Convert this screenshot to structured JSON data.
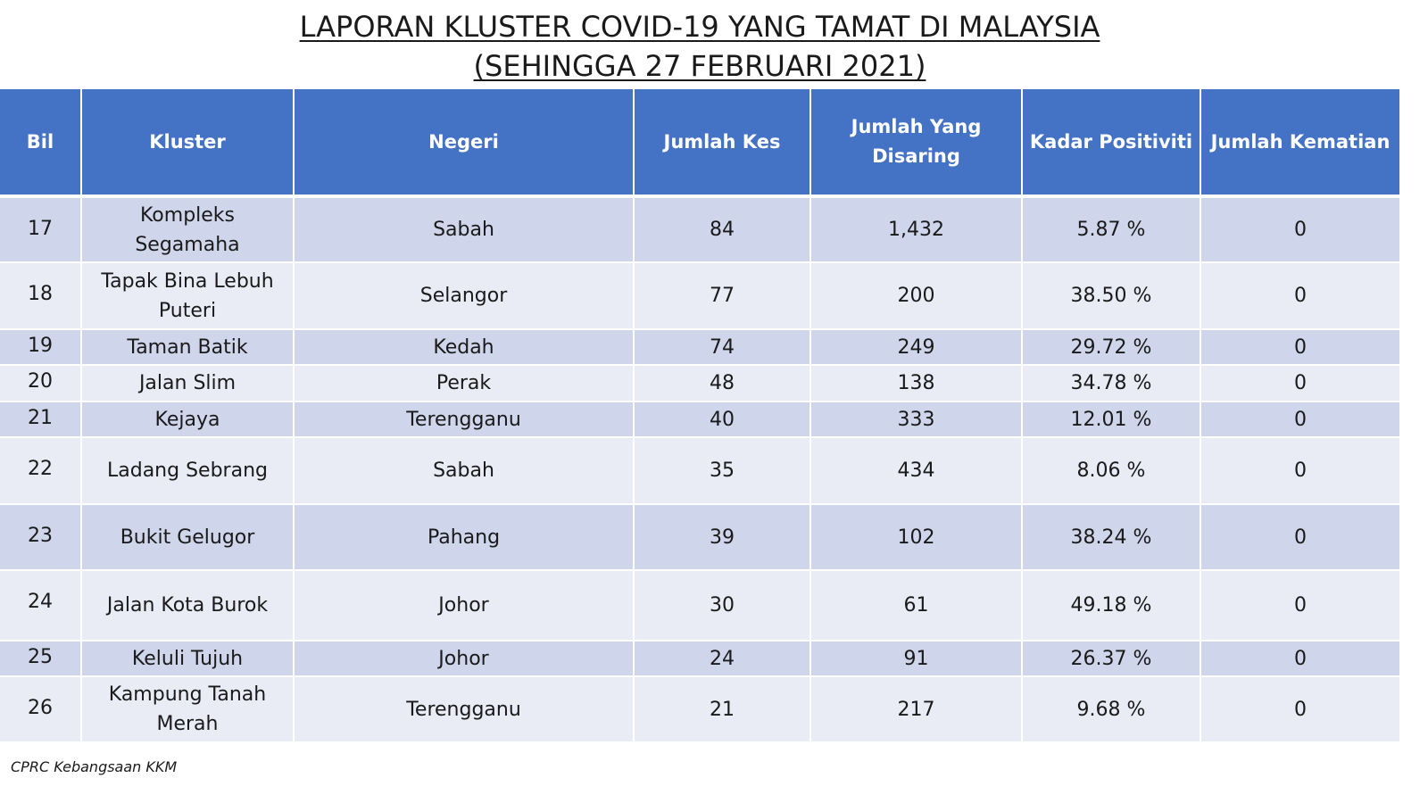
{
  "title": {
    "line1": "LAPORAN KLUSTER COVID-19 YANG TAMAT DI MALAYSIA",
    "line2": "(SEHINGGA  27 FEBRUARI 2021)"
  },
  "headers": [
    "Bil",
    "Kluster",
    "Negeri",
    "Jumlah Kes",
    "Jumlah Yang Disaring",
    "Kadar Positiviti",
    "Jumlah Kematian"
  ],
  "rows": [
    [
      "17",
      "Kompleks Segamaha",
      "Sabah",
      "84",
      "1,432",
      "5.87 %",
      "0"
    ],
    [
      "18",
      "Tapak Bina Lebuh Puteri",
      "Selangor",
      "77",
      "200",
      "38.50 %",
      "0"
    ],
    [
      "19",
      "Taman Batik",
      "Kedah",
      "74",
      "249",
      "29.72 %",
      "0"
    ],
    [
      "20",
      "Jalan Slim",
      "Perak",
      "48",
      "138",
      "34.78 %",
      "0"
    ],
    [
      "21",
      "Kejaya",
      "Terengganu",
      "40",
      "333",
      "12.01 %",
      "0"
    ],
    [
      "22",
      "Ladang Sebrang",
      "Sabah",
      "35",
      "434",
      "8.06 %",
      "0"
    ],
    [
      "23",
      "Bukit Gelugor",
      "Pahang",
      "39",
      "102",
      "38.24 %",
      "0"
    ],
    [
      "24",
      "Jalan Kota Burok",
      "Johor",
      "30",
      "61",
      "49.18 %",
      "0"
    ],
    [
      "25",
      "Keluli Tujuh",
      "Johor",
      "24",
      "91",
      "26.37 %",
      "0"
    ],
    [
      "26",
      "Kampung Tanah Merah",
      "Terengganu",
      "21",
      "217",
      "9.68 %",
      "0"
    ]
  ],
  "footer": "CPRC Kebangsaan KKM",
  "colors": {
    "header_bg": "#4472c4",
    "row_dark": "#cfd5ea",
    "row_light": "#e9ebf5"
  }
}
